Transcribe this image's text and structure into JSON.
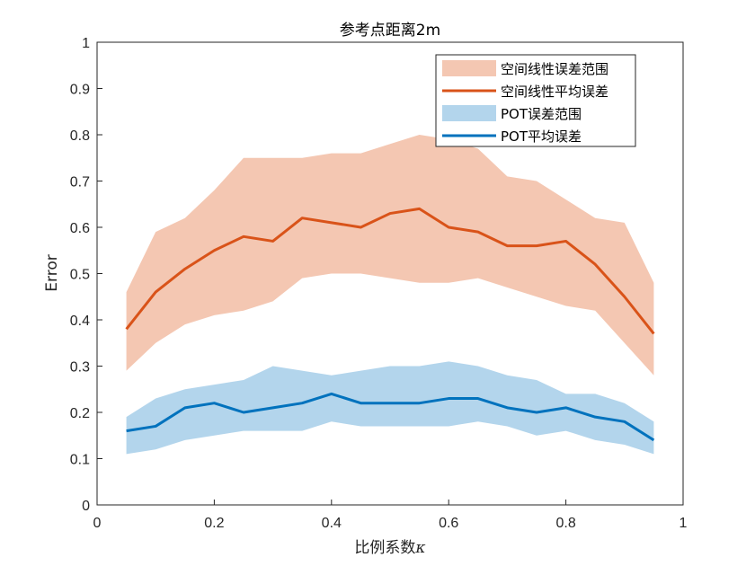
{
  "chart_data": {
    "type": "area",
    "title": "参考点距离2m",
    "xlabel": "比例系数",
    "xlabel_symbol": "κ",
    "ylabel": "Error",
    "xlim": [
      0,
      1
    ],
    "ylim": [
      0,
      1
    ],
    "grid": false,
    "legend_position": "top-right",
    "x": [
      0.05,
      0.1,
      0.15,
      0.2,
      0.25,
      0.3,
      0.35,
      0.4,
      0.45,
      0.5,
      0.55,
      0.6,
      0.65,
      0.7,
      0.75,
      0.8,
      0.85,
      0.9,
      0.95
    ],
    "xticks": [
      "0",
      "0.2",
      "0.4",
      "0.6",
      "0.8",
      "1"
    ],
    "yticks": [
      "0",
      "0.1",
      "0.2",
      "0.3",
      "0.4",
      "0.5",
      "0.6",
      "0.7",
      "0.8",
      "0.9",
      "1"
    ],
    "series": [
      {
        "name": "空间线性误差范围",
        "kind": "band",
        "color": "#f4c7b2",
        "upper": [
          0.46,
          0.59,
          0.62,
          0.68,
          0.75,
          0.75,
          0.75,
          0.76,
          0.76,
          0.78,
          0.8,
          0.79,
          0.77,
          0.71,
          0.7,
          0.66,
          0.62,
          0.61,
          0.48
        ],
        "lower": [
          0.29,
          0.35,
          0.39,
          0.41,
          0.42,
          0.44,
          0.49,
          0.5,
          0.5,
          0.49,
          0.48,
          0.48,
          0.49,
          0.47,
          0.45,
          0.43,
          0.42,
          0.35,
          0.28
        ]
      },
      {
        "name": "空间线性平均误差",
        "kind": "line",
        "color": "#d95319",
        "values": [
          0.38,
          0.46,
          0.51,
          0.55,
          0.58,
          0.57,
          0.62,
          0.61,
          0.6,
          0.63,
          0.64,
          0.6,
          0.59,
          0.56,
          0.56,
          0.57,
          0.52,
          0.45,
          0.37
        ]
      },
      {
        "name": "POT误差范围",
        "kind": "band",
        "color": "#b3d5ec",
        "upper": [
          0.19,
          0.23,
          0.25,
          0.26,
          0.27,
          0.3,
          0.29,
          0.28,
          0.29,
          0.3,
          0.3,
          0.31,
          0.3,
          0.28,
          0.27,
          0.24,
          0.24,
          0.22,
          0.18
        ],
        "lower": [
          0.11,
          0.12,
          0.14,
          0.15,
          0.16,
          0.16,
          0.16,
          0.18,
          0.17,
          0.17,
          0.17,
          0.17,
          0.18,
          0.17,
          0.15,
          0.16,
          0.14,
          0.13,
          0.11
        ]
      },
      {
        "name": "POT平均误差",
        "kind": "line",
        "color": "#0072bd",
        "values": [
          0.16,
          0.17,
          0.21,
          0.22,
          0.2,
          0.21,
          0.22,
          0.24,
          0.22,
          0.22,
          0.22,
          0.23,
          0.23,
          0.21,
          0.2,
          0.21,
          0.19,
          0.18,
          0.14
        ]
      }
    ]
  }
}
